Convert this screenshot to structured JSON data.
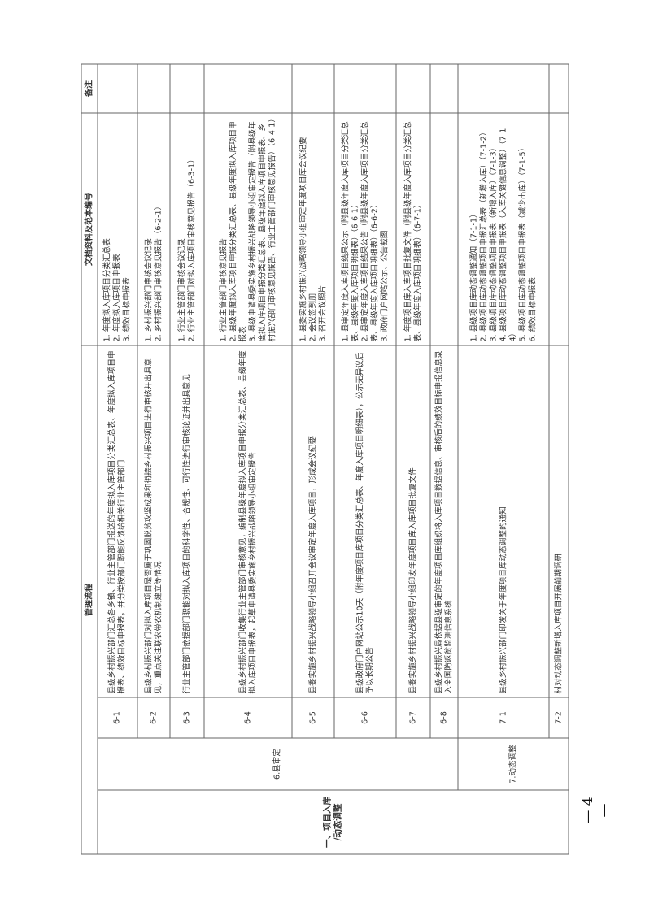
{
  "header": {
    "process": "管理流程",
    "docs": "文档资料及范本编号",
    "remarks": "备注"
  },
  "stage": {
    "line1": "一、项目入库",
    "line2": "/动态调整"
  },
  "substages": {
    "s6": "6.县审定",
    "s7": "7.动态调整"
  },
  "rows": [
    {
      "num": "6-1",
      "process": "县级乡村振兴部门汇总各乡镇、行业主管部门报送的年度拟入库项目分类汇总表、年度拟入库项目申报表、绩效目标申报表，并分类按部门职能反馈给相关行业主管部门",
      "docs": [
        "1. 年度拟入库项目分类汇总表",
        "2. 年度拟入库项目申报表",
        "3. 绩效目标申报表"
      ],
      "remarks": ""
    },
    {
      "num": "6-2",
      "process": "县级乡村振兴部门对拟入库项目是否属于巩固脱贫攻坚成果和衔接乡村振兴项目进行审核并出具意见，重点关注联农带农机制建立等情况",
      "docs": [
        "1. 乡村振兴部门审核会议记录",
        "2. 乡村振兴部门审核意见报告（6-2-1）"
      ],
      "remarks": ""
    },
    {
      "num": "6-3",
      "process": "行业主管部门依据部门职能对拟入库项目的科学性、合规性、可行性进行审核论证并出具意见",
      "docs": [
        "1. 行业主管部门审核会议记录",
        "2. 行业主管部门对拟入库项目审核意见报告（6-3-1）"
      ],
      "remarks": ""
    },
    {
      "num": "6-4",
      "process": "县级乡村振兴部门收集行业主管部门审核意见，编制县级年度拟入库项目申报分类汇总表、县级年度拟入库项目申报表，起草申请县委实施乡村振兴战略领导小组审定报告",
      "docs": [
        "1. 行业主管部门审核意见报告",
        "2. 县级年度拟入库项目申报分类汇总表、县级年度拟入库项目申报表",
        "3. 县级申请县委实施乡村振兴战略领导小组审定报告（附县级年度拟入库项目申报分类汇总表、县级年度拟入库项目申报表、乡村振兴部门审核意见报告、行业主管部门审核意见报告）（6-4-1）"
      ],
      "remarks": ""
    },
    {
      "num": "6-5",
      "process": "县委实施乡村振兴战略领导小组召开会议审定年度入库项目，形成会议纪要",
      "docs": [
        "1. 县委实施乡村振兴战略领导小组审定年度项目库会议纪要",
        "2. 会议签到册",
        "3. 召开会议照片"
      ],
      "remarks": ""
    },
    {
      "num": "6-6",
      "process": "县级政府门户网站公示10天（附年度项目库项目分类汇总表、年度入库项目明细表），公示无异议后予以长期公告",
      "docs": [
        "1. 县审定年度入库项目结果公示（附县级年度入库项目分类汇总表、县级年度入库项目明细表）（6-6-1）",
        "2. 县审定年度入库项目结果公告（附县级年度入库项目分类汇总表、县级年度入库项目明细表）（6-6-2）",
        "3. 政府门户网站公示、公告截图"
      ],
      "remarks": ""
    },
    {
      "num": "6-7",
      "process": "县委实施乡村振兴战略领导小组印发年度项目库入库项目批复文件",
      "docs": [
        "1. 年度项目库入库项目批复文件（附县级年度入库项目分类汇总表、县级年度入库项目明细表）（6-7-1）"
      ],
      "remarks": ""
    },
    {
      "num": "6-8",
      "process": "县级乡村振兴局依据县级审定的年度项目库组织将入库项目数据信息、审核后的绩效目标申报信息录入全国防返贫监测信息系统",
      "docs": [],
      "remarks": ""
    },
    {
      "num": "7-1",
      "process": "县级乡村振兴部门印发关于年度项目库动态调整的通知",
      "docs": [
        "1. 县级项目库动态调整通知（7-1-1）",
        "2. 县级项目库动态调整项目申报汇总表（新增入库）（7-1-2）",
        "3. 县级项目库动态调整项目申报表（新增入库）（7-1-3）",
        "4. 县级项目库动态调整项目申报表（入库关键信息调整）（7-1-4）",
        "5. 县级项目库动态调整项目申报表（减少出库）（7-1-5）",
        "6. 绩效目标申报表"
      ],
      "remarks": ""
    },
    {
      "num": "7-2",
      "process": "村对动态调整新增入库项目开展前期调研",
      "docs": [],
      "remarks": ""
    }
  ],
  "page_number": "— 4 —"
}
